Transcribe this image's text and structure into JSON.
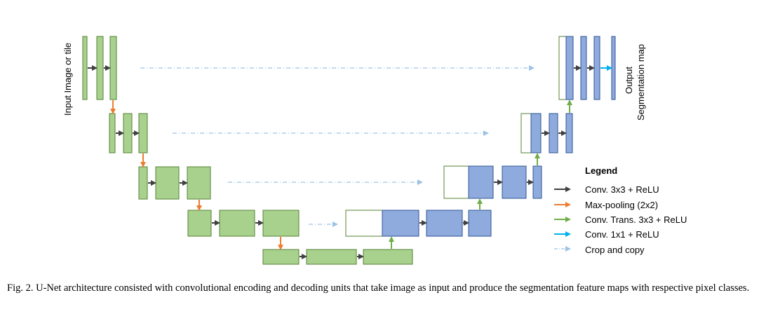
{
  "diagram": {
    "input_label": "Input Image or tile",
    "output_label_line1": "Output",
    "output_label_line2": "Segmentation map",
    "colors": {
      "encoder_fill": "#a9d18e",
      "encoder_stroke": "#548235",
      "decoder_fill": "#8faadc",
      "decoder_stroke": "#2f5597",
      "copy_stroke": "#548235",
      "conv_arrow": "#404040",
      "pool_arrow": "#ed7d31",
      "upconv_arrow": "#70ad47",
      "final_arrow": "#00b0f0",
      "crop_arrow": "#9dc3e6"
    }
  },
  "legend": {
    "title": "Legend",
    "items": [
      {
        "label": "Conv. 3x3 + ReLU",
        "kind": "conv"
      },
      {
        "label": "Max-pooling (2x2)",
        "kind": "pool"
      },
      {
        "label": "Conv.  Trans. 3x3 + ReLU",
        "kind": "upconv"
      },
      {
        "label": "Conv. 1x1 + ReLU",
        "kind": "final"
      },
      {
        "label": "Crop and copy",
        "kind": "crop"
      }
    ]
  },
  "caption": "Fig. 2.  U-Net architecture consisted with convolutional encoding and decoding units that take image as input and produce the segmentation feature maps with respective pixel classes."
}
